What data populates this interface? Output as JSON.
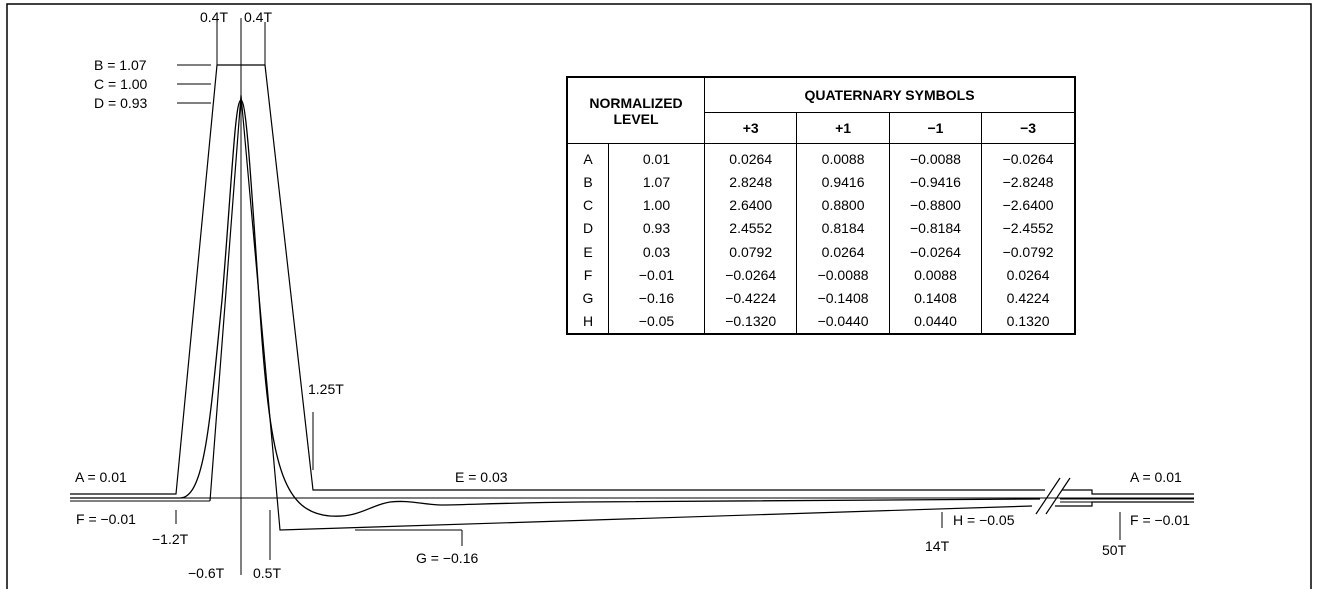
{
  "labels": {
    "top_left_width": "0.4T",
    "top_right_width": "0.4T",
    "level_b": "B = 1.07",
    "level_c": "C = 1.00",
    "level_d": "D = 0.93",
    "time_1_25": "1.25T",
    "level_a_left": "A = 0.01",
    "level_e": "E = 0.03",
    "level_a_right": "A = 0.01",
    "level_f_left": "F = −0.01",
    "time_neg_1_2": "−1.2T",
    "time_neg_0_6": "−0.6T",
    "time_0_5": "0.5T",
    "level_g": "G = −0.16",
    "time_14": "14T",
    "level_h": "H = −0.05",
    "time_50": "50T",
    "level_f_right": "F = −0.01"
  },
  "table": {
    "header_normalized": "NORMALIZED",
    "header_level": "LEVEL",
    "header_symbols": "QUATERNARY SYMBOLS",
    "symbol_columns": [
      "+3",
      "+1",
      "−1",
      "−3"
    ],
    "rows": [
      {
        "letter": "A",
        "level": "0.01",
        "values": [
          "0.0264",
          "0.0088",
          "−0.0088",
          "−0.0264"
        ]
      },
      {
        "letter": "B",
        "level": "1.07",
        "values": [
          "2.8248",
          "0.9416",
          "−0.9416",
          "−2.8248"
        ]
      },
      {
        "letter": "C",
        "level": "1.00",
        "values": [
          "2.6400",
          "0.8800",
          "−0.8800",
          "−2.6400"
        ]
      },
      {
        "letter": "D",
        "level": "0.93",
        "values": [
          "2.4552",
          "0.8184",
          "−0.8184",
          "−2.4552"
        ]
      },
      {
        "letter": "E",
        "level": "0.03",
        "values": [
          "0.0792",
          "0.0264",
          "−0.0264",
          "−0.0792"
        ]
      },
      {
        "letter": "F",
        "level": "−0.01",
        "values": [
          "−0.0264",
          "−0.0088",
          "0.0088",
          "0.0264"
        ]
      },
      {
        "letter": "G",
        "level": "−0.16",
        "values": [
          "−0.4224",
          "−0.1408",
          "0.1408",
          "0.4224"
        ]
      },
      {
        "letter": "H",
        "level": "−0.05",
        "values": [
          "−0.1320",
          "−0.0440",
          "0.0440",
          "0.1320"
        ]
      }
    ]
  }
}
